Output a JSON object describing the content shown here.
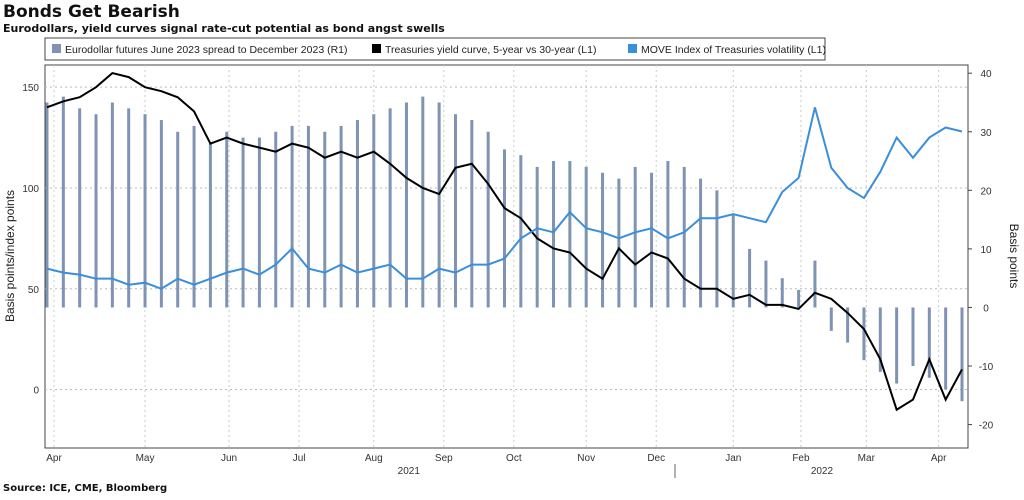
{
  "title": "Bonds Get Bearish",
  "subtitle": "Eurodollars, yield curves signal rate-cut potential as bond angst swells",
  "source": "Source: ICE, CME, Bloomberg",
  "colors": {
    "bars": "#7f93b2",
    "treasuries": "#000000",
    "move": "#3a8fdc"
  },
  "chart_data": {
    "type": "bar+line",
    "x_start": "2021-03-29",
    "x_step_days": 7,
    "left_axis": {
      "label": "Basis points/index points",
      "ticks": [
        0,
        50,
        100,
        150
      ],
      "ylim": [
        -29,
        161
      ]
    },
    "right_axis": {
      "label": "Basis points",
      "ticks": [
        -20,
        -10,
        0,
        10,
        20,
        30,
        40
      ],
      "ylim": [
        -24,
        41.4
      ]
    },
    "x_ticks": [
      "Apr",
      "May",
      "Jun",
      "Jul",
      "Aug",
      "Sep",
      "Oct",
      "Nov",
      "Dec",
      "Jan",
      "Feb",
      "Mar",
      "Apr"
    ],
    "x_tick_dates": [
      "2021-04-01",
      "2021-05-10",
      "2021-06-15",
      "2021-07-15",
      "2021-08-16",
      "2021-09-15",
      "2021-10-15",
      "2021-11-15",
      "2021-12-15",
      "2022-01-17",
      "2022-02-15",
      "2022-03-15",
      "2022-04-15"
    ],
    "years": [
      {
        "label": "2021",
        "date": "2021-08-31"
      },
      {
        "label": "2022",
        "date": "2022-02-24"
      }
    ],
    "series": [
      {
        "name": "Eurodollar futures June 2023 spread to December 2023 (R1)",
        "kind": "bar",
        "axis": "right",
        "values": [
          35,
          36,
          34,
          33,
          35,
          34,
          33,
          32,
          30,
          31,
          28,
          30,
          29,
          29,
          30,
          31,
          31,
          30,
          31,
          32,
          33,
          34,
          35,
          36,
          35,
          33,
          32,
          30,
          27,
          26,
          24,
          25,
          25,
          24,
          23,
          22,
          24,
          23,
          25,
          24,
          22,
          20,
          16,
          10,
          8,
          5,
          3,
          8,
          -4,
          -6,
          -9,
          -11,
          -13,
          -10,
          -12,
          -14,
          -16
        ]
      },
      {
        "name": "Treasuries yield curve, 5-year vs 30-year (L1)",
        "kind": "line",
        "axis": "left",
        "values": [
          140,
          143,
          145,
          150,
          157,
          155,
          150,
          148,
          145,
          138,
          122,
          125,
          122,
          120,
          118,
          122,
          120,
          115,
          118,
          115,
          118,
          112,
          105,
          100,
          97,
          110,
          112,
          102,
          90,
          85,
          75,
          70,
          68,
          60,
          55,
          70,
          62,
          68,
          65,
          55,
          50,
          50,
          45,
          47,
          42,
          42,
          40,
          48,
          45,
          38,
          30,
          15,
          -10,
          -5,
          15,
          -5,
          10
        ]
      },
      {
        "name": "MOVE Index of Treasuries volatility (L1)",
        "kind": "line",
        "axis": "left",
        "values": [
          60,
          58,
          57,
          55,
          55,
          52,
          53,
          50,
          55,
          52,
          55,
          58,
          60,
          57,
          62,
          70,
          60,
          58,
          62,
          58,
          60,
          62,
          55,
          55,
          60,
          58,
          62,
          62,
          65,
          75,
          80,
          78,
          88,
          80,
          78,
          75,
          78,
          80,
          75,
          78,
          85,
          85,
          87,
          85,
          83,
          98,
          105,
          140,
          110,
          100,
          95,
          108,
          125,
          115,
          125,
          130,
          128
        ]
      }
    ]
  }
}
